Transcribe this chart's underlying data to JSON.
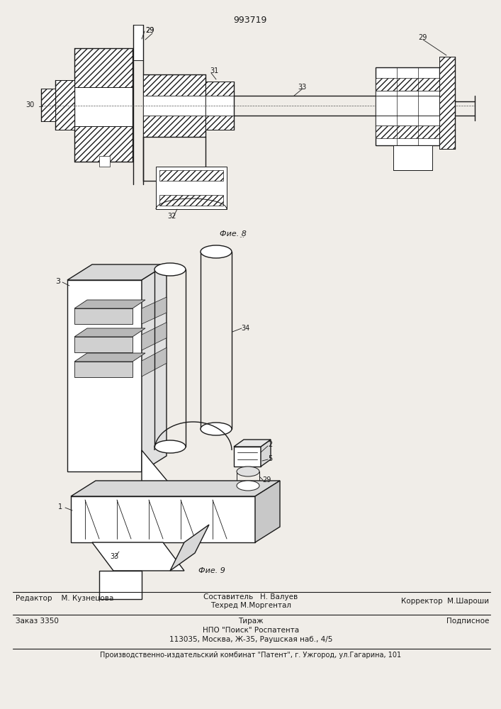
{
  "patent_number": "993719",
  "background_color": "#f0ede8",
  "fig8_label": "Фие. 8",
  "fig9_label": "Фие. 9",
  "footer_line1_left": "Редактор    М. Кузнецова",
  "footer_line1_center_top": "Составитель   Н. Валуев",
  "footer_line1_center_bot": "Техред М.Моргентал",
  "footer_line1_right": "Корректор  М.Шароши",
  "footer_line2_left": "Заказ 3350",
  "footer_line2_center": "Тираж",
  "footer_line2_right": "Подписное",
  "footer_line3_center": "НПО \"Поиск\" Роспатента",
  "footer_line4_center": "113035, Москва, Ж-35, Раушская наб., 4/5",
  "footer_bottom": "Производственно-издательский комбинат \"Патент\", г. Ужгород, ул.Гагарина, 101"
}
